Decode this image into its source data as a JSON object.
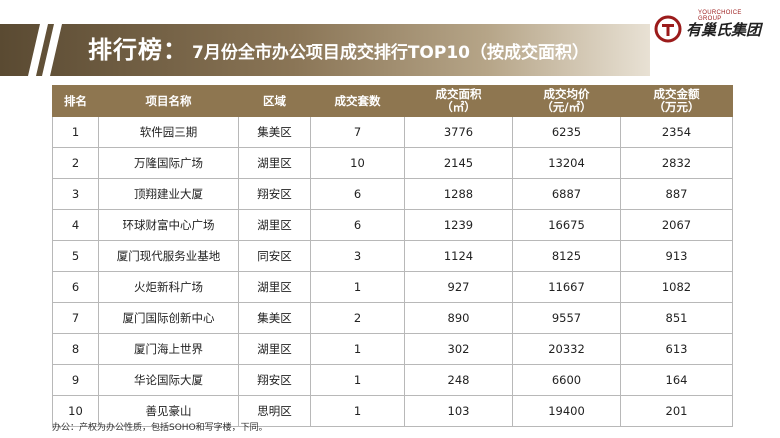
{
  "slide": {
    "title_main": "排行榜：",
    "title_sub": "7月份全市办公项目成交排行TOP10（按成交面积）",
    "logo_tag": "YOURCHOICE GROUP",
    "logo_name": "有巢氏集团",
    "footnote": "办公：产权为办公性质，包括SOHO和写字楼，下同。",
    "accent_color": "#8e7650",
    "logo_color": "#9b1b1b"
  },
  "table": {
    "headers": [
      "排名",
      "项目名称",
      "区域",
      "成交套数",
      "成交面积\n（㎡）",
      "成交均价\n（元/㎡）",
      "成交金额\n（万元）"
    ],
    "rows": [
      [
        "1",
        "软件园三期",
        "集美区",
        "7",
        "3776",
        "6235",
        "2354"
      ],
      [
        "2",
        "万隆国际广场",
        "湖里区",
        "10",
        "2145",
        "13204",
        "2832"
      ],
      [
        "3",
        "顶翔建业大厦",
        "翔安区",
        "6",
        "1288",
        "6887",
        "887"
      ],
      [
        "4",
        "环球财富中心广场",
        "湖里区",
        "6",
        "1239",
        "16675",
        "2067"
      ],
      [
        "5",
        "厦门现代服务业基地",
        "同安区",
        "3",
        "1124",
        "8125",
        "913"
      ],
      [
        "6",
        "火炬新科广场",
        "湖里区",
        "1",
        "927",
        "11667",
        "1082"
      ],
      [
        "7",
        "厦门国际创新中心",
        "集美区",
        "2",
        "890",
        "9557",
        "851"
      ],
      [
        "8",
        "厦门海上世界",
        "湖里区",
        "1",
        "302",
        "20332",
        "613"
      ],
      [
        "9",
        "华论国际大厦",
        "翔安区",
        "1",
        "248",
        "6600",
        "164"
      ],
      [
        "10",
        "善见豪山",
        "思明区",
        "1",
        "103",
        "19400",
        "201"
      ]
    ]
  }
}
